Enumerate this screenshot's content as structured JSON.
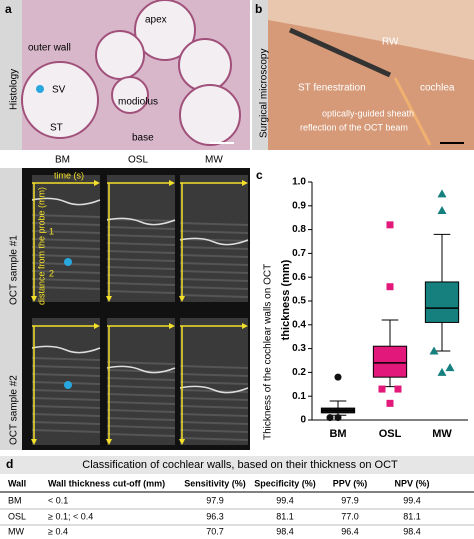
{
  "panel_a": {
    "label": "a",
    "side_label": "Histology",
    "annotations": [
      "apex",
      "outer wall",
      "SV",
      "modiolus",
      "ST",
      "base"
    ],
    "walls": [
      "BM",
      "OSL",
      "MW"
    ]
  },
  "panel_oct": {
    "time_label": "time (s)",
    "depth_label": "distance from the probe (mm)",
    "depth_ticks": [
      "1",
      "2"
    ],
    "rows": [
      "OCT   sample #1",
      "OCT   sample #2"
    ]
  },
  "panel_b": {
    "label": "b",
    "side_label": "Surgical microscopy",
    "annotations": [
      "RW",
      "ST fenestration",
      "cochlea",
      "optically-guided sheath",
      "reflection of the OCT beam"
    ]
  },
  "chart_data": {
    "type": "box",
    "label": "c",
    "title": "Thickness of the cochlear walls on OCT",
    "ylabel": "thickness (mm)",
    "categories": [
      "BM",
      "OSL",
      "MW"
    ],
    "boxes": [
      {
        "whisker_low": 0.02,
        "q1": 0.03,
        "median": 0.04,
        "q3": 0.05,
        "whisker_high": 0.08,
        "outliers": [
          0.18,
          0.01,
          0.01
        ],
        "color": "#111111",
        "marker": "circle"
      },
      {
        "whisker_low": 0.14,
        "q1": 0.18,
        "median": 0.24,
        "q3": 0.31,
        "whisker_high": 0.42,
        "outliers": [
          0.82,
          0.56,
          0.13,
          0.13,
          0.07
        ],
        "color": "#e2187a",
        "marker": "square"
      },
      {
        "whisker_low": 0.29,
        "q1": 0.41,
        "median": 0.47,
        "q3": 0.58,
        "whisker_high": 0.78,
        "outliers": [
          0.95,
          0.88,
          0.29,
          0.22,
          0.2
        ],
        "color": "#16807f",
        "marker": "triangle"
      }
    ],
    "ylim": [
      0,
      1
    ],
    "yticks": [
      0,
      0.1,
      0.2,
      0.3,
      0.4,
      0.5,
      0.6,
      0.7,
      0.8,
      0.9,
      {
        "value": 1,
        "label": "1.0"
      }
    ]
  },
  "table": {
    "label": "d",
    "title": "Classification of cochlear walls, based on their thickness on OCT",
    "header": [
      "Wall",
      "Wall thickness cut-off (mm)",
      "Sensitivity (%)",
      "Specificity (%)",
      "PPV (%)",
      "NPV (%)"
    ],
    "rows": [
      [
        "BM",
        "< 0.1",
        "97.9",
        "99.4",
        "97.9",
        "99.4"
      ],
      [
        "OSL",
        "≥ 0.1; < 0.4",
        "96.3",
        "81.1",
        "77.0",
        "81.1"
      ],
      [
        "MW",
        "≥ 0.4",
        "70.7",
        "98.4",
        "96.4",
        "98.4"
      ]
    ]
  }
}
